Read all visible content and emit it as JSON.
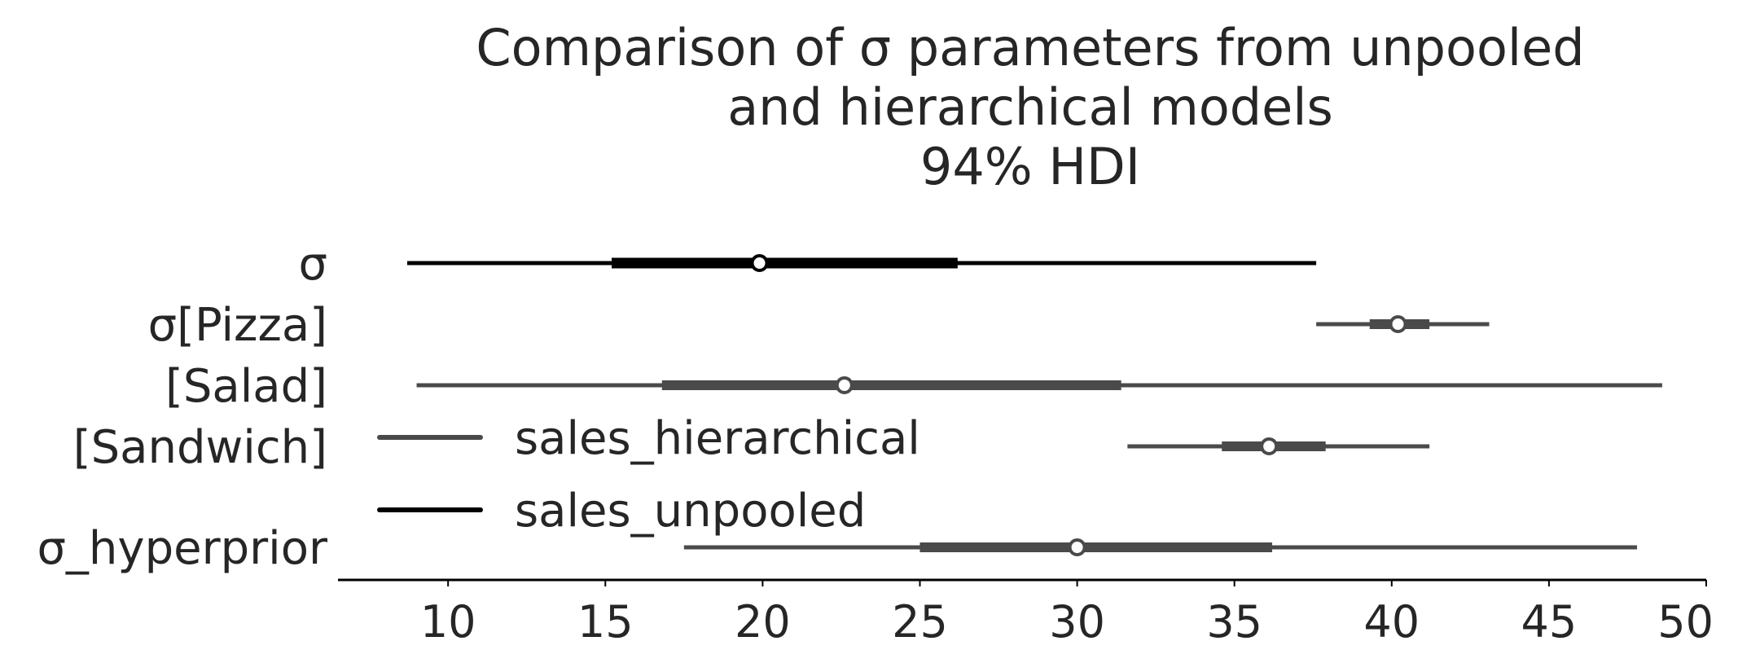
{
  "chart_data": {
    "type": "forest",
    "title_lines": [
      "Comparison of σ parameters from unpooled",
      "and hierarchical models",
      "94% HDI"
    ],
    "xlabel": "",
    "ylabel": "",
    "xlim": [
      6.5,
      50
    ],
    "xticks": [
      10,
      15,
      20,
      25,
      30,
      35,
      40,
      45,
      50
    ],
    "grid": false,
    "legend_position": "center-left",
    "colors": {
      "sales_hierarchical": "#4a4a4a",
      "sales_unpooled": "#000000"
    },
    "series": [
      {
        "name": "sales_hierarchical",
        "color": "#4a4a4a"
      },
      {
        "name": "sales_unpooled",
        "color": "#000000"
      }
    ],
    "rows": [
      {
        "label": "σ",
        "series": "sales_unpooled",
        "hdi94": [
          8.7,
          37.6
        ],
        "iqr": [
          15.2,
          26.2
        ],
        "point": 19.9
      },
      {
        "label": "σ[Pizza]",
        "series": "sales_hierarchical",
        "hdi94": [
          37.6,
          43.1
        ],
        "iqr": [
          39.3,
          41.2
        ],
        "point": 40.2
      },
      {
        "label": "[Salad]",
        "series": "sales_hierarchical",
        "hdi94": [
          9.0,
          48.6
        ],
        "iqr": [
          16.8,
          31.4
        ],
        "point": 22.6
      },
      {
        "label": "[Sandwich]",
        "series": "sales_hierarchical",
        "hdi94": [
          31.6,
          41.2
        ],
        "iqr": [
          34.6,
          37.9
        ],
        "point": 36.1
      },
      {
        "label": "σ_hyperprior",
        "series": "sales_hierarchical",
        "hdi94": [
          17.5,
          47.8
        ],
        "iqr": [
          25.0,
          36.2
        ],
        "point": 30.0
      }
    ]
  }
}
